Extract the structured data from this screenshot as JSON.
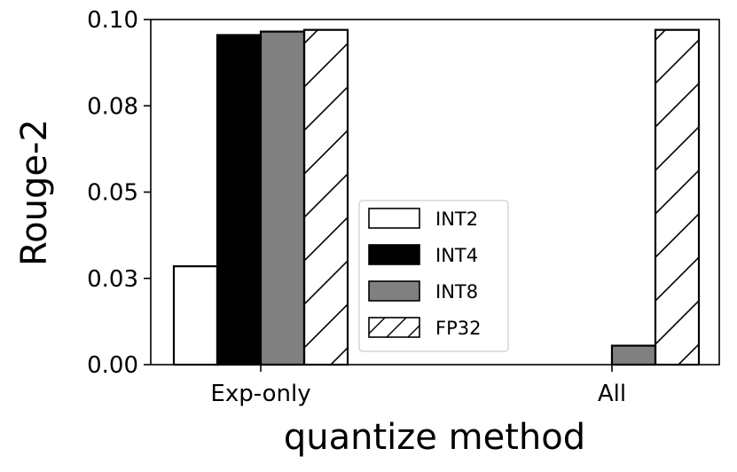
{
  "chart_data": {
    "type": "bar",
    "categories": [
      "Exp-only",
      "All"
    ],
    "series": [
      {
        "name": "INT2",
        "values": [
          0.0285,
          0.0
        ],
        "fill": "#ffffff",
        "hatch": false
      },
      {
        "name": "INT4",
        "values": [
          0.0955,
          0.0
        ],
        "fill": "#000000",
        "hatch": false
      },
      {
        "name": "INT8",
        "values": [
          0.0965,
          0.0055
        ],
        "fill": "#808080",
        "hatch": false
      },
      {
        "name": "FP32",
        "values": [
          0.097,
          0.097
        ],
        "fill": "#ffffff",
        "hatch": true
      }
    ],
    "xlabel": "quantize method",
    "ylabel": "Rouge-2",
    "ylim": [
      0,
      0.1
    ],
    "yticks": [
      0.0,
      0.025,
      0.05,
      0.075,
      0.1
    ],
    "ytick_labels": [
      "0.00",
      "0.03",
      "0.05",
      "0.08",
      "0.10"
    ],
    "grid": false,
    "legend_position": "center"
  }
}
